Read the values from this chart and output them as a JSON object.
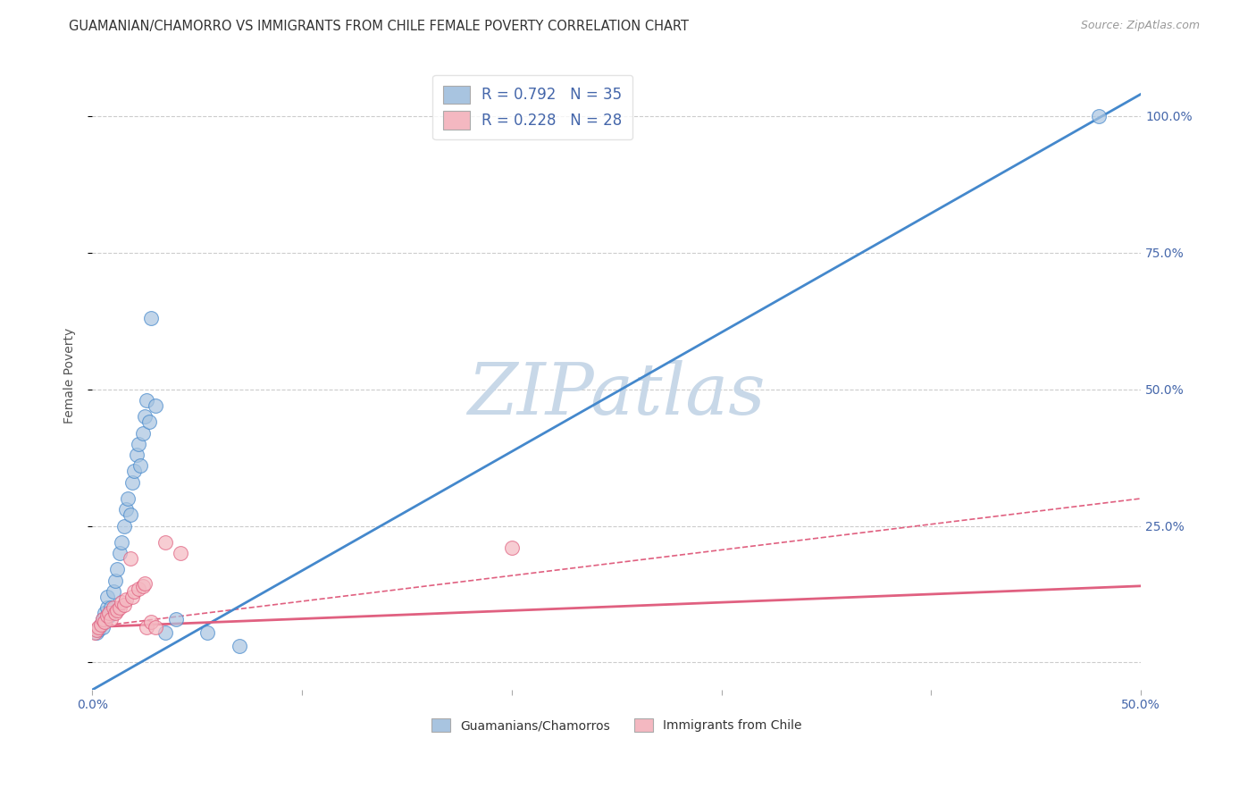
{
  "title": "GUAMANIAN/CHAMORRO VS IMMIGRANTS FROM CHILE FEMALE POVERTY CORRELATION CHART",
  "source": "Source: ZipAtlas.com",
  "xlabel": "",
  "ylabel": "Female Poverty",
  "xlim": [
    0.0,
    0.5
  ],
  "ylim": [
    -0.05,
    1.1
  ],
  "xticks": [
    0.0,
    0.1,
    0.2,
    0.3,
    0.4,
    0.5
  ],
  "xticklabels": [
    "0.0%",
    "",
    "",
    "",
    "",
    "50.0%"
  ],
  "ytick_positions": [
    0.0,
    0.25,
    0.5,
    0.75,
    1.0
  ],
  "ytick_labels": [
    "",
    "25.0%",
    "50.0%",
    "75.0%",
    "100.0%"
  ],
  "blue_color": "#A8C4E0",
  "pink_color": "#F4B8C1",
  "blue_line_color": "#4488CC",
  "pink_line_color": "#E06080",
  "pink_dashed_color": "#E06080",
  "watermark_text_color": "#C8D8E8",
  "R_blue": 0.792,
  "N_blue": 35,
  "R_pink": 0.228,
  "N_pink": 28,
  "legend_label_blue": "Guamanians/Chamorros",
  "legend_label_pink": "Immigrants from Chile",
  "blue_scatter": [
    [
      0.002,
      0.055
    ],
    [
      0.003,
      0.06
    ],
    [
      0.004,
      0.07
    ],
    [
      0.005,
      0.065
    ],
    [
      0.005,
      0.08
    ],
    [
      0.006,
      0.09
    ],
    [
      0.007,
      0.1
    ],
    [
      0.007,
      0.12
    ],
    [
      0.008,
      0.085
    ],
    [
      0.009,
      0.1
    ],
    [
      0.01,
      0.13
    ],
    [
      0.011,
      0.15
    ],
    [
      0.012,
      0.17
    ],
    [
      0.013,
      0.2
    ],
    [
      0.014,
      0.22
    ],
    [
      0.015,
      0.25
    ],
    [
      0.016,
      0.28
    ],
    [
      0.017,
      0.3
    ],
    [
      0.018,
      0.27
    ],
    [
      0.019,
      0.33
    ],
    [
      0.02,
      0.35
    ],
    [
      0.021,
      0.38
    ],
    [
      0.022,
      0.4
    ],
    [
      0.023,
      0.36
    ],
    [
      0.024,
      0.42
    ],
    [
      0.025,
      0.45
    ],
    [
      0.026,
      0.48
    ],
    [
      0.027,
      0.44
    ],
    [
      0.028,
      0.63
    ],
    [
      0.03,
      0.47
    ],
    [
      0.035,
      0.055
    ],
    [
      0.04,
      0.08
    ],
    [
      0.055,
      0.055
    ],
    [
      0.07,
      0.03
    ],
    [
      0.48,
      1.0
    ]
  ],
  "pink_scatter": [
    [
      0.001,
      0.055
    ],
    [
      0.002,
      0.06
    ],
    [
      0.003,
      0.065
    ],
    [
      0.004,
      0.07
    ],
    [
      0.005,
      0.08
    ],
    [
      0.006,
      0.075
    ],
    [
      0.007,
      0.085
    ],
    [
      0.008,
      0.09
    ],
    [
      0.009,
      0.08
    ],
    [
      0.01,
      0.1
    ],
    [
      0.011,
      0.09
    ],
    [
      0.012,
      0.095
    ],
    [
      0.013,
      0.1
    ],
    [
      0.014,
      0.11
    ],
    [
      0.015,
      0.105
    ],
    [
      0.016,
      0.115
    ],
    [
      0.018,
      0.19
    ],
    [
      0.019,
      0.12
    ],
    [
      0.02,
      0.13
    ],
    [
      0.022,
      0.135
    ],
    [
      0.024,
      0.14
    ],
    [
      0.025,
      0.145
    ],
    [
      0.026,
      0.065
    ],
    [
      0.028,
      0.075
    ],
    [
      0.03,
      0.065
    ],
    [
      0.035,
      0.22
    ],
    [
      0.042,
      0.2
    ],
    [
      0.2,
      0.21
    ]
  ],
  "blue_line_y_intercept": -0.05,
  "blue_line_slope": 2.18,
  "pink_line_y_intercept": 0.065,
  "pink_line_slope": 0.15,
  "pink_dashed_line_y_intercept": 0.065,
  "pink_dashed_line_slope": 0.47
}
